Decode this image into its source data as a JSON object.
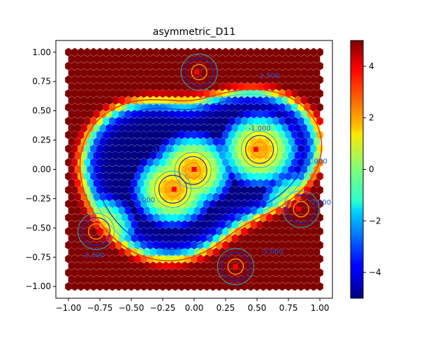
{
  "chart_data": {
    "type": "heatmap",
    "title": "asymmetric_D11",
    "xlabel": "",
    "ylabel": "",
    "xlim": [
      -1.1,
      1.1
    ],
    "ylim": [
      -1.1,
      1.1
    ],
    "x_ticks": [
      -1.0,
      -0.75,
      -0.5,
      -0.25,
      0.0,
      0.25,
      0.5,
      0.75,
      1.0
    ],
    "x_tick_labels": [
      "−1.00",
      "−0.75",
      "−0.50",
      "−0.25",
      "0.00",
      "0.25",
      "0.50",
      "0.75",
      "1.00"
    ],
    "y_ticks": [
      -1.0,
      -0.75,
      -0.5,
      -0.25,
      0.0,
      0.25,
      0.5,
      0.75,
      1.0
    ],
    "y_tick_labels": [
      "−1.00",
      "−0.75",
      "−0.50",
      "−0.25",
      "0.00",
      "0.25",
      "0.50",
      "0.75",
      "1.00"
    ],
    "colorbar": {
      "colormap": "jet",
      "vmin": -5,
      "vmax": 5,
      "ticks": [
        4,
        2,
        0,
        -2,
        -4
      ],
      "tick_labels": [
        "4",
        "2",
        "0",
        "−2",
        "−4"
      ]
    },
    "grid": false,
    "hexbin_extent": [
      -1.0,
      1.0,
      -1.0,
      1.0
    ],
    "wells": [
      {
        "x": 0.04,
        "y": 0.83,
        "value": 1.0
      },
      {
        "x": 0.52,
        "y": 0.17,
        "value": 1.0
      },
      {
        "x": -0.01,
        "y": -0.01,
        "value": 1.0
      },
      {
        "x": -0.17,
        "y": -0.17,
        "value": 1.0
      },
      {
        "x": 0.85,
        "y": -0.34,
        "value": 1.0
      },
      {
        "x": -0.78,
        "y": -0.53,
        "value": 1.0
      },
      {
        "x": 0.33,
        "y": -0.83,
        "value": 1.0
      }
    ],
    "centers": [
      {
        "x": 0.02,
        "y": 0.83
      },
      {
        "x": 0.49,
        "y": 0.17
      },
      {
        "x": 0.0,
        "y": 0.0
      },
      {
        "x": -0.16,
        "y": -0.17
      },
      {
        "x": 0.83,
        "y": -0.34
      },
      {
        "x": -0.74,
        "y": -0.53
      },
      {
        "x": 0.33,
        "y": -0.83
      }
    ],
    "contour_labels": [
      {
        "text": "1.500",
        "x": 0.6,
        "y": 0.78
      },
      {
        "text": "-2.000",
        "x": -0.3,
        "y": 0.5
      },
      {
        "text": "-1.000",
        "x": -0.25,
        "y": 0.15
      },
      {
        "text": "-1.000",
        "x": 0.52,
        "y": 0.33
      },
      {
        "text": "-3.000",
        "x": -0.4,
        "y": -0.28
      },
      {
        "text": "-2.000",
        "x": -0.8,
        "y": -0.75
      },
      {
        "text": "1.000",
        "x": 0.98,
        "y": 0.05
      },
      {
        "text": "-3.000",
        "x": 0.62,
        "y": -0.72
      },
      {
        "text": "-2.000",
        "x": 1.0,
        "y": -0.3
      }
    ]
  }
}
